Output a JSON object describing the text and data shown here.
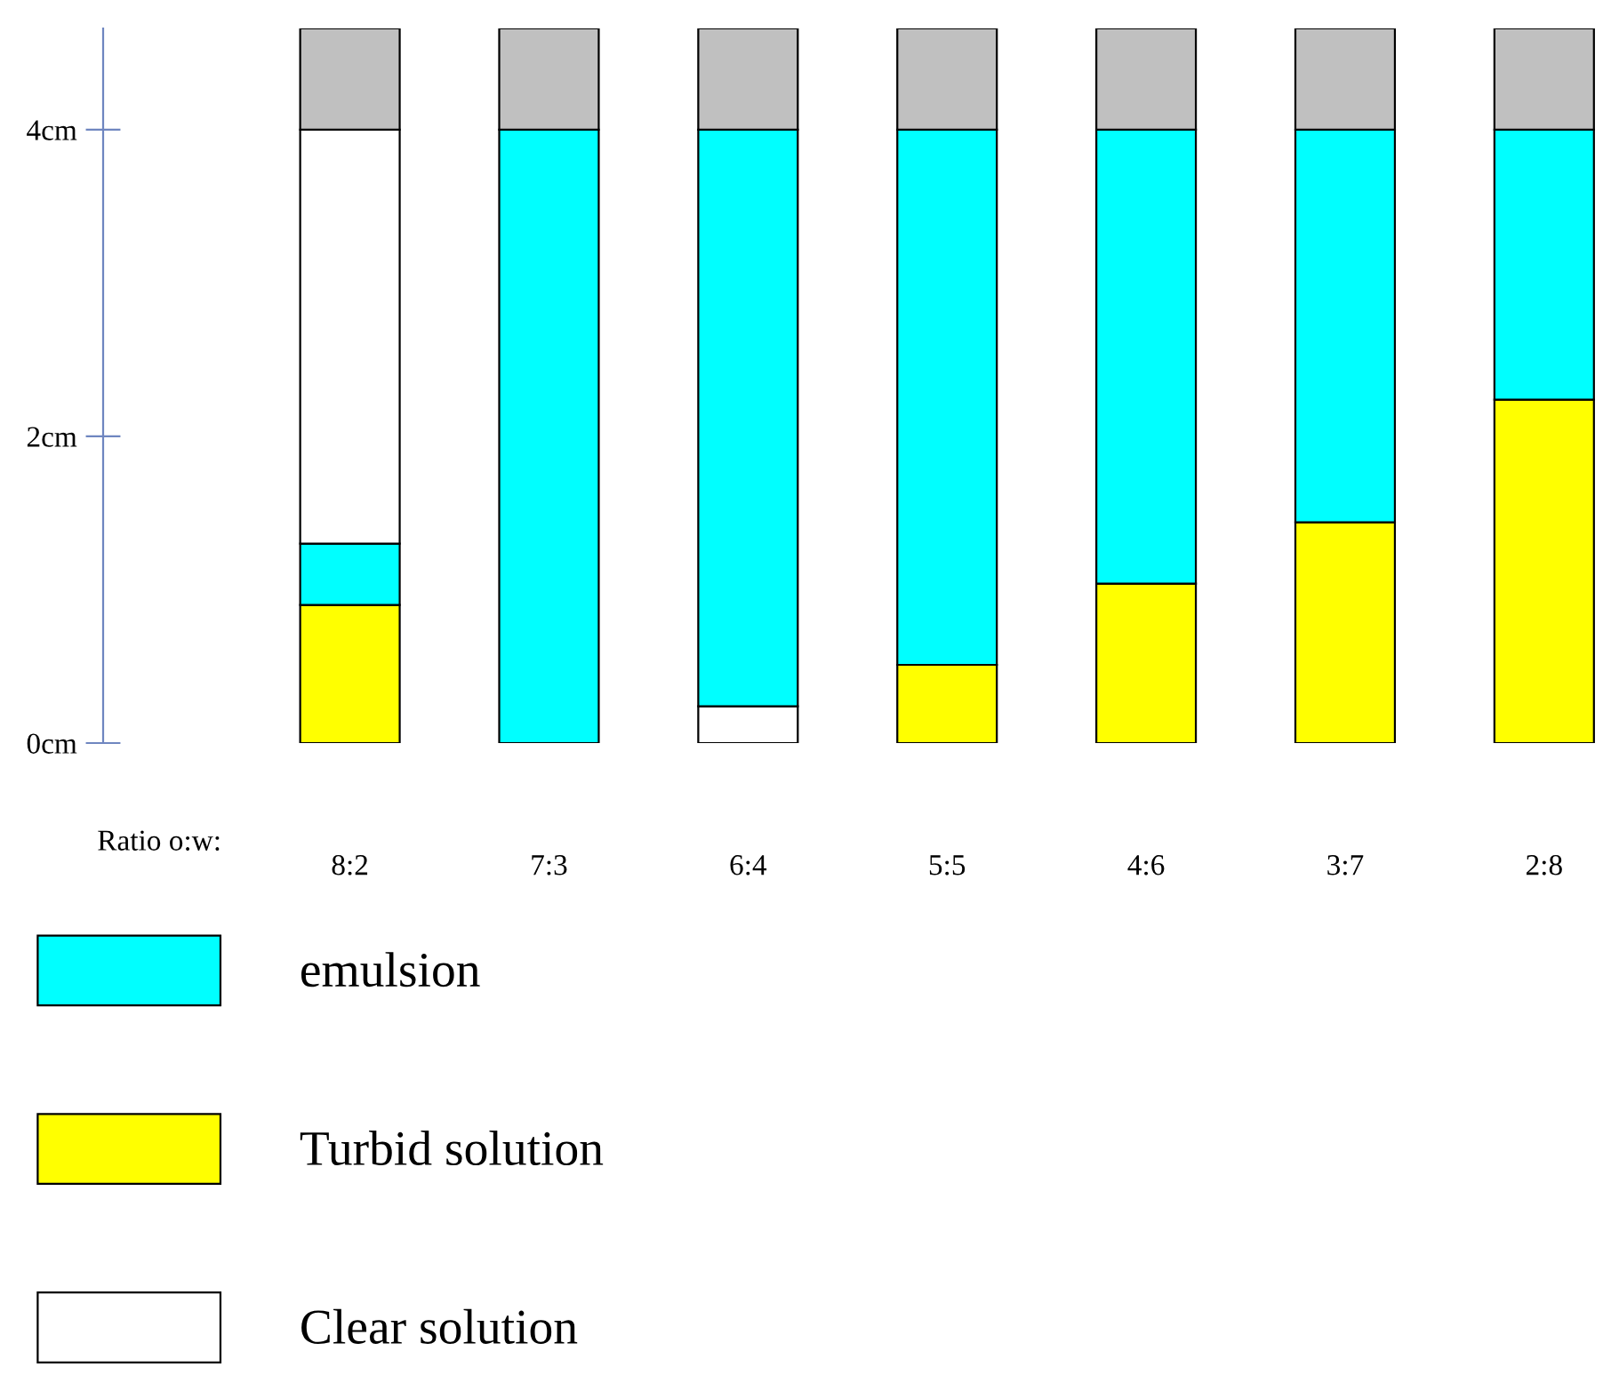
{
  "chart_data": {
    "type": "bar",
    "stacked": true,
    "xlabel": "Ratio o:w:",
    "categories": [
      "8:2",
      "7:3",
      "6:4",
      "5:5",
      "4:6",
      "3:7",
      "2:8"
    ],
    "series": [
      {
        "name": "Clear solution",
        "color": "#ffffff",
        "values": [
          null,
          null,
          0.24,
          null,
          null,
          null,
          null
        ]
      },
      {
        "name": "Turbid solution",
        "color": "#ffff00",
        "values": [
          0.9,
          null,
          null,
          0.51,
          1.04,
          1.44,
          2.24
        ]
      },
      {
        "name": "emulsion",
        "color": "#00ffff",
        "values": [
          0.4,
          4.0,
          3.76,
          3.49,
          2.96,
          2.56,
          1.76
        ]
      },
      {
        "color": "#ffffff",
        "values": [
          2.7,
          null,
          null,
          null,
          null,
          null,
          null
        ]
      },
      {
        "color": "#c0c0c0",
        "values": [
          0.66,
          0.66,
          0.66,
          0.66,
          0.66,
          0.66,
          0.66
        ]
      }
    ],
    "ylim": [
      0,
      4.66
    ],
    "yticks": [
      {
        "value": 0,
        "label": "0cm"
      },
      {
        "value": 2,
        "label": "2cm"
      },
      {
        "value": 4,
        "label": "4cm"
      }
    ],
    "legend": "bottom left",
    "grid": false
  }
}
